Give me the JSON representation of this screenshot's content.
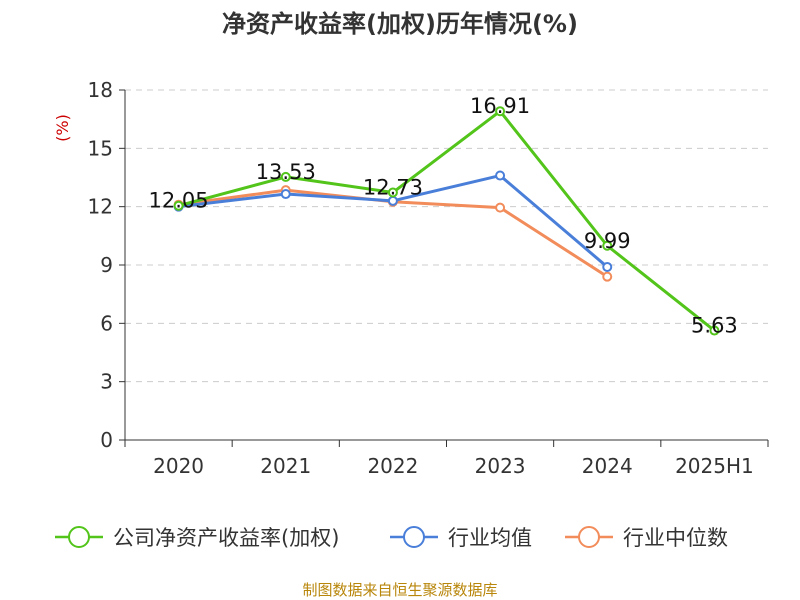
{
  "chart_data": {
    "type": "line",
    "title": "净资产收益率(加权)历年情况(%)",
    "ylabel": "(%)",
    "xlabel": "",
    "categories": [
      "2020",
      "2021",
      "2022",
      "2023",
      "2024",
      "2025H1"
    ],
    "ylim": [
      0,
      18
    ],
    "yticks": [
      0,
      3,
      6,
      9,
      12,
      15,
      18
    ],
    "grid": true,
    "legend_position": "bottom",
    "series": [
      {
        "name": "公司净资产收益率(加权)",
        "color": "#52c41a",
        "values": [
          12.05,
          13.53,
          12.73,
          16.91,
          9.99,
          5.63
        ],
        "show_labels": true
      },
      {
        "name": "行业均值",
        "color": "#4a7fd9",
        "values": [
          12.0,
          12.65,
          12.3,
          13.6,
          8.9,
          null
        ],
        "show_labels": false
      },
      {
        "name": "行业中位数",
        "color": "#f28c5a",
        "values": [
          12.1,
          12.85,
          12.25,
          11.95,
          8.4,
          null
        ],
        "show_labels": false
      }
    ],
    "data_labels": [
      "12.05",
      "13.53",
      "12.73",
      "16.91",
      "9.99",
      "5.63"
    ]
  },
  "footer": {
    "source": "制图数据来自恒生聚源数据库"
  }
}
